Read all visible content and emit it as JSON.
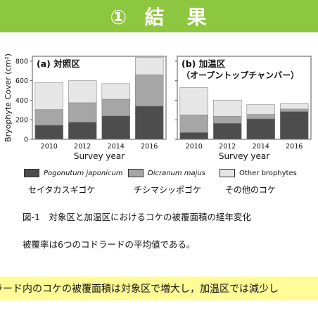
{
  "header": {
    "title": "①  結　果"
  },
  "chart_data": [
    {
      "type": "bar",
      "stacked": true,
      "title": "(a)  対照区",
      "categories": [
        "2010",
        "2012",
        "2014",
        "2016"
      ],
      "xlabel": "Survey year",
      "ylabel": "Bryophyte Cover (cm²)",
      "ylim": [
        0,
        850
      ],
      "yticks": [
        0,
        200,
        400,
        600,
        800
      ],
      "series": [
        {
          "name": "Pogonutum japonicum",
          "values": [
            145,
            175,
            240,
            340
          ]
        },
        {
          "name": "Dicranum majus",
          "values": [
            160,
            200,
            170,
            320
          ]
        },
        {
          "name": "Other brophytes",
          "values": [
            275,
            225,
            160,
            180
          ]
        }
      ]
    },
    {
      "type": "bar",
      "stacked": true,
      "title": "(b)  加温区\n（オープントップチャンバー）",
      "categories": [
        "2010",
        "2012",
        "2014",
        "2016"
      ],
      "xlabel": "Survey year",
      "ylim": [
        0,
        850
      ],
      "yticks": [
        0,
        200,
        400,
        600,
        800
      ],
      "series": [
        {
          "name": "Pogonutum japonicum",
          "values": [
            70,
            165,
            210,
            285
          ]
        },
        {
          "name": "Dicranum majus",
          "values": [
            180,
            70,
            45,
            25
          ]
        },
        {
          "name": "Other brophytes",
          "values": [
            280,
            165,
            100,
            55
          ]
        }
      ]
    }
  ],
  "colors": {
    "header": "#8dc63f",
    "pogonatum": "#4d4d4d",
    "dicranum": "#a6a6a6",
    "other": "#e6e6e6",
    "banner": "#fffb96"
  },
  "legend": [
    {
      "name": "Pogonutum japonicum",
      "jp": "セイタカスギゴケ",
      "italic": true
    },
    {
      "name": "Dicranum majus",
      "jp": "チシマシッポゴケ",
      "italic": true
    },
    {
      "name": "Other brophytes",
      "jp": "その他のコケ",
      "italic": false
    }
  ],
  "caption": "図-1　対象区と加温区におけるコケの被覆面積の経年変化",
  "note": "被覆率は6つのコドラードの平均値である。",
  "banner": "ラード内のコケの被覆面積は対象区で増大し，加温区では減少し"
}
